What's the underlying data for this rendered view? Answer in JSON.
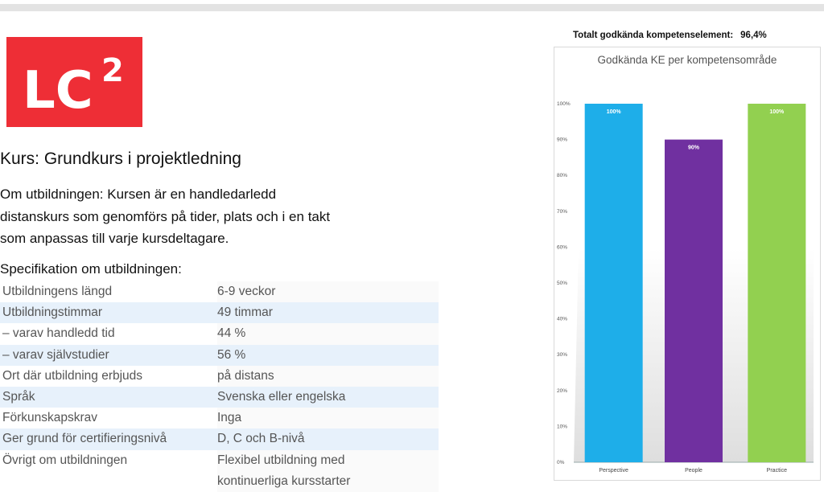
{
  "logo": {
    "text": "LC",
    "superscript": "2",
    "color": "#ee2e36"
  },
  "course": {
    "title": "Kurs: Grundkurs i projektledning"
  },
  "about": {
    "lines": [
      "Om utbildningen: Kursen är en handledarledd",
      "distanskurs som genomförs på tider, plats och i en takt",
      "som anpassas till varje kursdeltagare."
    ]
  },
  "spec": {
    "heading": "Specifikation om utbildningen:",
    "rows": [
      {
        "label": "Utbildningens längd",
        "value": "6-9 veckor"
      },
      {
        "label": "Utbildningstimmar",
        "value": "49 timmar"
      },
      {
        "label": "– varav handledd tid",
        "value": "44 %"
      },
      {
        "label": "– varav självstudier",
        "value": "56 %"
      },
      {
        "label": "Ort där utbildning erbjuds",
        "value": "på distans"
      },
      {
        "label": "Språk",
        "value": "Svenska eller engelska"
      },
      {
        "label": "Förkunskapskrav",
        "value": "Inga"
      },
      {
        "label": "Ger grund för certifieringsnivå",
        "value": "D, C och B-nivå"
      },
      {
        "label": "Övrigt om utbildningen",
        "value": "Flexibel utbildning med",
        "value2": "kontinuerliga kursstarter"
      }
    ]
  },
  "total": {
    "label": "Totalt godkända kompetenselement:",
    "value": "96,4%"
  },
  "chart_data": {
    "type": "bar",
    "title": "Godkända KE per kompetensområde",
    "categories": [
      "Perspective",
      "People",
      "Practice"
    ],
    "values": [
      100,
      90,
      100
    ],
    "data_labels": [
      "100%",
      "90%",
      "100%"
    ],
    "colors": [
      "#1eaee9",
      "#7030a0",
      "#92d050"
    ],
    "ylim": [
      0,
      100
    ],
    "yticks": [
      "0%",
      "10%",
      "20%",
      "30%",
      "40%",
      "50%",
      "60%",
      "70%",
      "80%",
      "90%",
      "100%"
    ],
    "grid": false,
    "legend": "none"
  }
}
